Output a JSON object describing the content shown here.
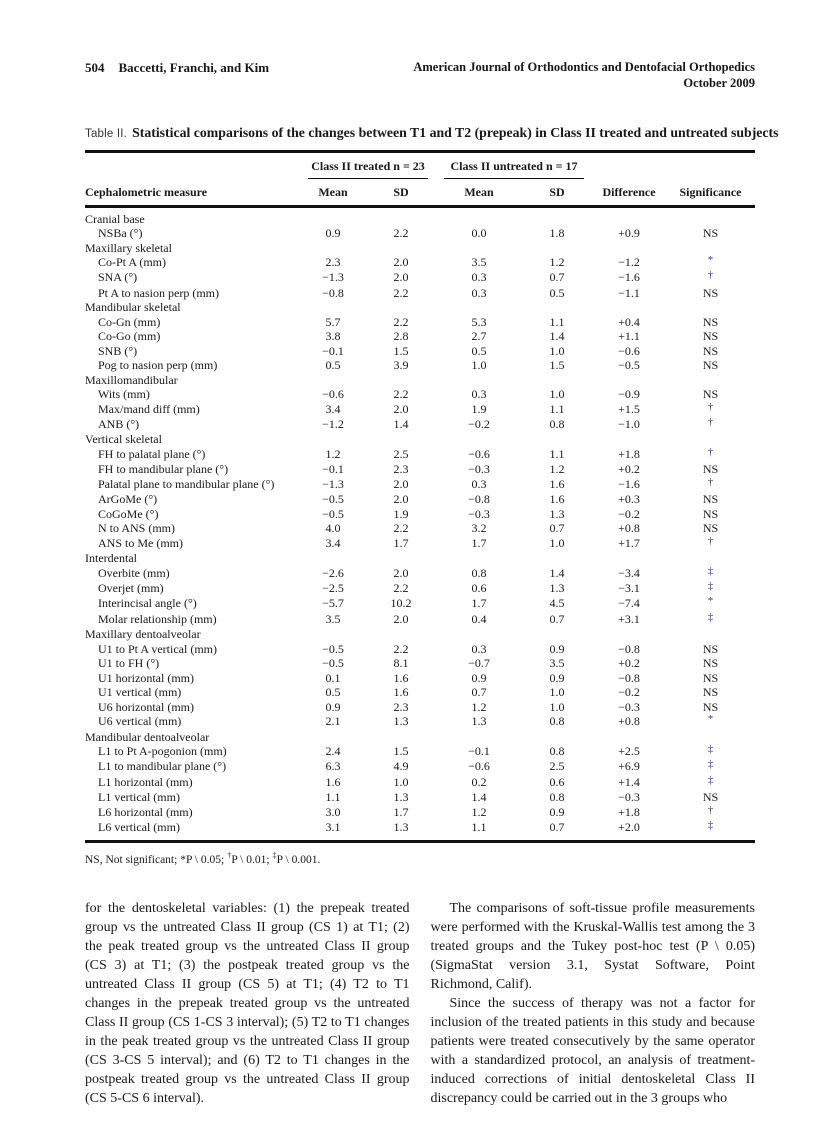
{
  "header": {
    "page_number": "504",
    "authors": "Baccetti, Franchi, and Kim",
    "journal_line1": "American Journal of Orthodontics and Dentofacial Orthopedics",
    "journal_line2": "October 2009"
  },
  "table": {
    "label": "Table II.",
    "caption": "Statistical comparisons of the changes between T1 and T2 (prepeak) in Class II treated and untreated subjects",
    "group_headers": [
      "Class II treated n = 23",
      "Class II untreated n = 17"
    ],
    "columns": [
      "Cephalometric measure",
      "Mean",
      "SD",
      "Mean",
      "SD",
      "Difference",
      "Significance"
    ],
    "sections": [
      {
        "name": "Cranial base",
        "rows": [
          {
            "measure": "NSBa (°)",
            "values": [
              "0.9",
              "2.2",
              "0.0",
              "1.8",
              "+0.9"
            ],
            "sig": "NS"
          }
        ]
      },
      {
        "name": "Maxillary skeletal",
        "rows": [
          {
            "measure": "Co-Pt A (mm)",
            "values": [
              "2.3",
              "2.0",
              "3.5",
              "1.2",
              "−1.2"
            ],
            "sig": "*"
          },
          {
            "measure": "SNA (°)",
            "values": [
              "−1.3",
              "2.0",
              "0.3",
              "0.7",
              "−1.6"
            ],
            "sig": "†"
          },
          {
            "measure": "Pt A to nasion perp (mm)",
            "values": [
              "−0.8",
              "2.2",
              "0.3",
              "0.5",
              "−1.1"
            ],
            "sig": "NS"
          }
        ]
      },
      {
        "name": "Mandibular skeletal",
        "rows": [
          {
            "measure": "Co-Gn (mm)",
            "values": [
              "5.7",
              "2.2",
              "5.3",
              "1.1",
              "+0.4"
            ],
            "sig": "NS"
          },
          {
            "measure": "Co-Go (mm)",
            "values": [
              "3.8",
              "2.8",
              "2.7",
              "1.4",
              "+1.1"
            ],
            "sig": "NS"
          },
          {
            "measure": "SNB (°)",
            "values": [
              "−0.1",
              "1.5",
              "0.5",
              "1.0",
              "−0.6"
            ],
            "sig": "NS"
          },
          {
            "measure": "Pog to nasion perp (mm)",
            "values": [
              "0.5",
              "3.9",
              "1.0",
              "1.5",
              "−0.5"
            ],
            "sig": "NS"
          }
        ]
      },
      {
        "name": "Maxillomandibular",
        "rows": [
          {
            "measure": "Wits (mm)",
            "values": [
              "−0.6",
              "2.2",
              "0.3",
              "1.0",
              "−0.9"
            ],
            "sig": "NS"
          },
          {
            "measure": "Max/mand diff (mm)",
            "values": [
              "3.4",
              "2.0",
              "1.9",
              "1.1",
              "+1.5"
            ],
            "sig": "†"
          },
          {
            "measure": "ANB (°)",
            "values": [
              "−1.2",
              "1.4",
              "−0.2",
              "0.8",
              "−1.0"
            ],
            "sig": "†"
          }
        ]
      },
      {
        "name": "Vertical skeletal",
        "rows": [
          {
            "measure": "FH to palatal plane (°)",
            "values": [
              "1.2",
              "2.5",
              "−0.6",
              "1.1",
              "+1.8"
            ],
            "sig": "†"
          },
          {
            "measure": "FH to mandibular plane (°)",
            "values": [
              "−0.1",
              "2.3",
              "−0.3",
              "1.2",
              "+0.2"
            ],
            "sig": "NS"
          },
          {
            "measure": "Palatal plane to mandibular plane (°)",
            "values": [
              "−1.3",
              "2.0",
              "0.3",
              "1.6",
              "−1.6"
            ],
            "sig": "†"
          },
          {
            "measure": "ArGoMe (°)",
            "values": [
              "−0.5",
              "2.0",
              "−0.8",
              "1.6",
              "+0.3"
            ],
            "sig": "NS"
          },
          {
            "measure": "CoGoMe (°)",
            "values": [
              "−0.5",
              "1.9",
              "−0.3",
              "1.3",
              "−0.2"
            ],
            "sig": "NS"
          },
          {
            "measure": "N to ANS (mm)",
            "values": [
              "4.0",
              "2.2",
              "3.2",
              "0.7",
              "+0.8"
            ],
            "sig": "NS"
          },
          {
            "measure": "ANS to Me (mm)",
            "values": [
              "3.4",
              "1.7",
              "1.7",
              "1.0",
              "+1.7"
            ],
            "sig": "†"
          }
        ]
      },
      {
        "name": "Interdental",
        "rows": [
          {
            "measure": "Overbite (mm)",
            "values": [
              "−2.6",
              "2.0",
              "0.8",
              "1.4",
              "−3.4"
            ],
            "sig": "‡"
          },
          {
            "measure": "Overjet (mm)",
            "values": [
              "−2.5",
              "2.2",
              "0.6",
              "1.3",
              "−3.1"
            ],
            "sig": "‡"
          },
          {
            "measure": "Interincisal angle (°)",
            "values": [
              "−5.7",
              "10.2",
              "1.7",
              "4.5",
              "−7.4"
            ],
            "sig": "*"
          },
          {
            "measure": "Molar relationship (mm)",
            "values": [
              "3.5",
              "2.0",
              "0.4",
              "0.7",
              "+3.1"
            ],
            "sig": "‡"
          }
        ]
      },
      {
        "name": "Maxillary dentoalveolar",
        "rows": [
          {
            "measure": "U1 to Pt A vertical (mm)",
            "values": [
              "−0.5",
              "2.2",
              "0.3",
              "0.9",
              "−0.8"
            ],
            "sig": "NS"
          },
          {
            "measure": "U1 to FH (°)",
            "values": [
              "−0.5",
              "8.1",
              "−0.7",
              "3.5",
              "+0.2"
            ],
            "sig": "NS"
          },
          {
            "measure": "U1 horizontal (mm)",
            "values": [
              "0.1",
              "1.6",
              "0.9",
              "0.9",
              "−0.8"
            ],
            "sig": "NS"
          },
          {
            "measure": "U1 vertical (mm)",
            "values": [
              "0.5",
              "1.6",
              "0.7",
              "1.0",
              "−0.2"
            ],
            "sig": "NS"
          },
          {
            "measure": "U6 horizontal (mm)",
            "values": [
              "0.9",
              "2.3",
              "1.2",
              "1.0",
              "−0.3"
            ],
            "sig": "NS"
          },
          {
            "measure": "U6 vertical (mm)",
            "values": [
              "2.1",
              "1.3",
              "1.3",
              "0.8",
              "+0.8"
            ],
            "sig": "*"
          }
        ]
      },
      {
        "name": "Mandibular dentoalveolar",
        "rows": [
          {
            "measure": "L1 to Pt A-pogonion (mm)",
            "values": [
              "2.4",
              "1.5",
              "−0.1",
              "0.8",
              "+2.5"
            ],
            "sig": "‡"
          },
          {
            "measure": "L1 to mandibular plane (°)",
            "values": [
              "6.3",
              "4.9",
              "−0.6",
              "2.5",
              "+6.9"
            ],
            "sig": "‡"
          },
          {
            "measure": "L1 horizontal (mm)",
            "values": [
              "1.6",
              "1.0",
              "0.2",
              "0.6",
              "+1.4"
            ],
            "sig": "‡"
          },
          {
            "measure": "L1 vertical (mm)",
            "values": [
              "1.1",
              "1.3",
              "1.4",
              "0.8",
              "−0.3"
            ],
            "sig": "NS"
          },
          {
            "measure": "L6 horizontal (mm)",
            "values": [
              "3.0",
              "1.7",
              "1.2",
              "0.9",
              "+1.8"
            ],
            "sig": "†"
          },
          {
            "measure": "L6 vertical (mm)",
            "values": [
              "3.1",
              "1.3",
              "1.1",
              "0.7",
              "+2.0"
            ],
            "sig": "‡"
          }
        ]
      }
    ],
    "footnote_parts": [
      {
        "text": "NS, Not significant; *P \\ 0.05; "
      },
      {
        "sup": "†"
      },
      {
        "text": "P \\ 0.01; "
      },
      {
        "sup": "‡"
      },
      {
        "text": "P \\ 0.001."
      }
    ]
  },
  "body": {
    "left_paragraph": "for the dentoskeletal variables: (1) the prepeak treated group vs the untreated Class II group (CS 1) at T1; (2) the peak treated group vs the untreated Class II group (CS 3) at T1; (3) the postpeak treated group vs the untreated Class II group (CS 5) at T1; (4) T2 to T1 changes in the prepeak treated group vs the untreated Class II group (CS 1-CS 3 interval); (5) T2 to T1 changes in the peak treated group vs the untreated Class II group (CS 3-CS 5 interval); and (6) T2 to T1 changes in the postpeak treated group vs the untreated Class II group (CS 5-CS 6 interval).",
    "right_paragraph_1": "The comparisons of soft-tissue profile measurements were performed with the Kruskal-Wallis test among the 3 treated groups and the Tukey post-hoc test (P \\ 0.05) (SigmaStat version 3.1, Systat Software, Point Richmond, Calif).",
    "right_paragraph_2": "Since the success of therapy was not a factor for inclusion of the treated patients in this study and because patients were treated consecutively by the same operator with a standardized protocol, an analysis of treatment-induced corrections of initial dentoskeletal Class II discrepancy could be carried out in the 3 groups who"
  }
}
